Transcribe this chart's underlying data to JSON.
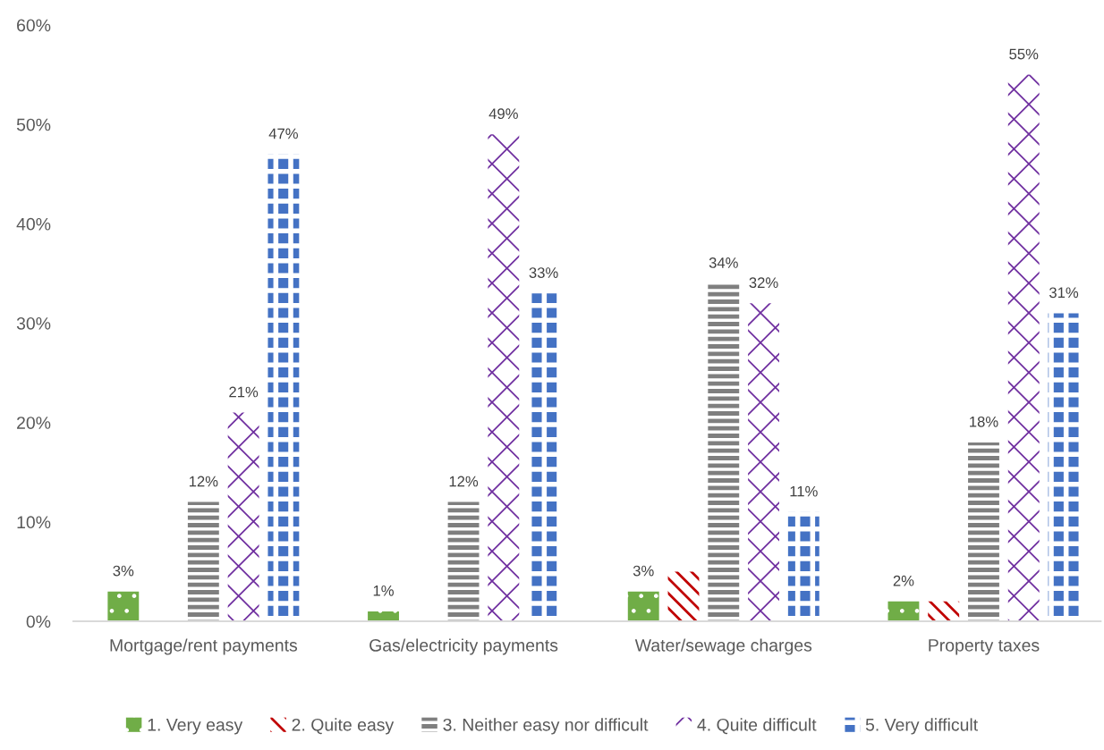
{
  "chart_data": {
    "type": "bar",
    "categories": [
      "Mortgage/rent payments",
      "Gas/electricity payments",
      "Water/sewage charges",
      "Property taxes"
    ],
    "series": [
      {
        "name": "1. Very easy",
        "color": "#70ad47",
        "values": [
          3,
          1,
          3,
          2
        ],
        "value_labels": [
          "3%",
          "1%",
          "3%",
          "2%"
        ]
      },
      {
        "name": "2. Quite easy",
        "color": "#c00000",
        "values": [
          null,
          null,
          5,
          2
        ],
        "value_labels": [
          null,
          null,
          null,
          null
        ]
      },
      {
        "name": "3. Neither easy nor difficult",
        "color": "#7f7f7f",
        "values": [
          12,
          12,
          34,
          18
        ],
        "value_labels": [
          "12%",
          "12%",
          "34%",
          "18%"
        ]
      },
      {
        "name": "4. Quite difficult",
        "color": "#7030a0",
        "values": [
          21,
          49,
          32,
          55
        ],
        "value_labels": [
          "21%",
          "49%",
          "32%",
          "55%"
        ]
      },
      {
        "name": "5. Very difficult",
        "color": "#4472c4",
        "values": [
          47,
          33,
          11,
          31
        ],
        "value_labels": [
          "47%",
          "33%",
          "11%",
          "31%"
        ]
      }
    ],
    "ylim": [
      0,
      60
    ],
    "yticks": [
      {
        "value": 0,
        "label": "0%"
      },
      {
        "value": 10,
        "label": "10%"
      },
      {
        "value": 20,
        "label": "20%"
      },
      {
        "value": 30,
        "label": "30%"
      },
      {
        "value": 40,
        "label": "40%"
      },
      {
        "value": 50,
        "label": "50%"
      },
      {
        "value": 60,
        "label": "60%"
      }
    ],
    "grid": false,
    "legend": "bottom"
  }
}
